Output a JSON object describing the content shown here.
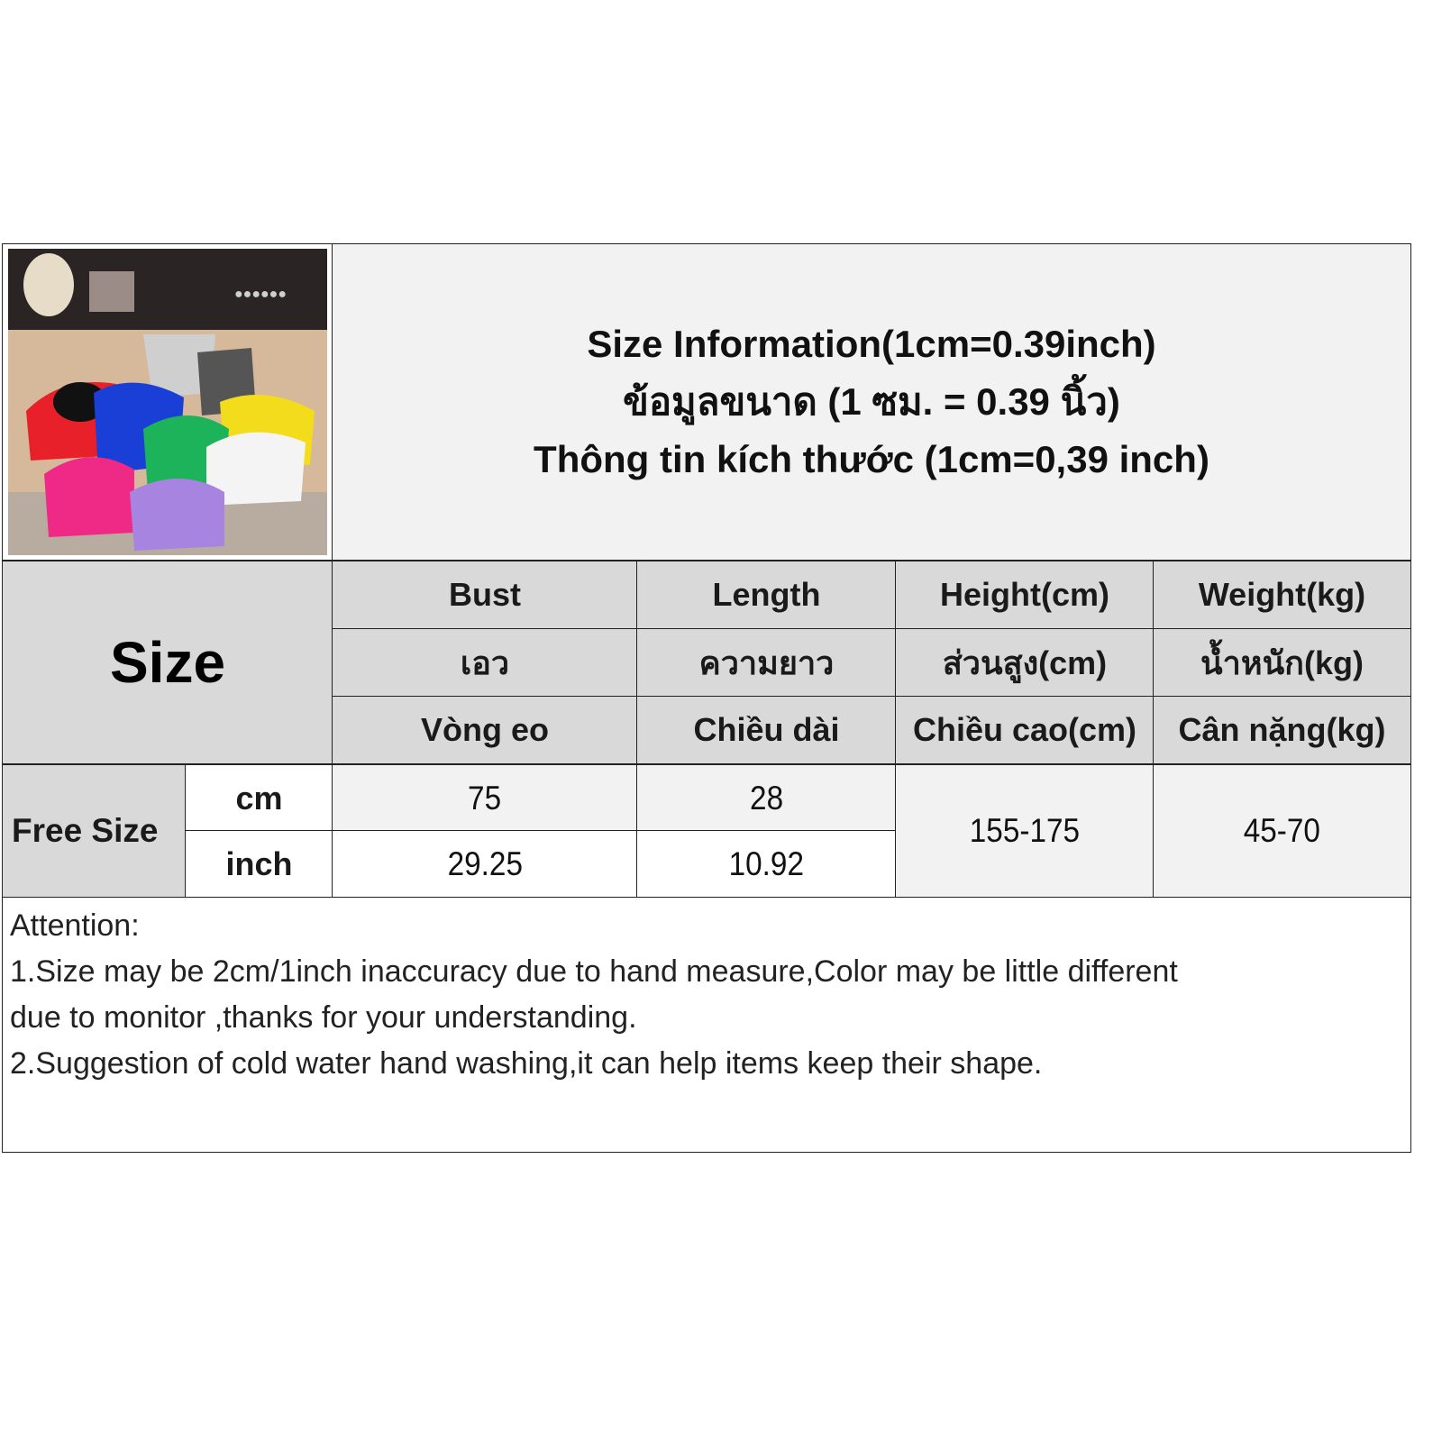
{
  "title": {
    "line_en": "Size Information(1cm=0.39inch)",
    "line_th": "ข้อมูลขนาด (1 ซม. = 0.39 นิ้ว)",
    "line_vi": "Thông tin kích thước (1cm=0,39 inch)"
  },
  "product_photo": {
    "description_icon": "product-photo",
    "colors": [
      "#e8202a",
      "#1a3fd6",
      "#1db35a",
      "#f2dc1c",
      "#f4f4f4",
      "#ef2a86",
      "#a784e0",
      "#555555",
      "#cfcfcf"
    ]
  },
  "table": {
    "size_header": "Size",
    "columns": [
      {
        "en": "Bust",
        "th": "เอว",
        "vi": "Vòng eo"
      },
      {
        "en": "Length",
        "th": "ความยาว",
        "vi": "Chiều dài"
      },
      {
        "en": "Height(cm)",
        "th": "ส่วนสูง(cm)",
        "vi": "Chiều cao(cm)"
      },
      {
        "en": "Weight(kg)",
        "th": "น้ำหนัก(kg)",
        "vi": "Cân nặng(kg)"
      }
    ],
    "row_label": "Free Size",
    "units": [
      "cm",
      "inch"
    ],
    "bust": [
      "75",
      "29.25"
    ],
    "length": [
      "28",
      "10.92"
    ],
    "height": "155-175",
    "weight": "45-70"
  },
  "attention": {
    "heading": "Attention:",
    "lines": [
      "1.Size may be 2cm/1inch inaccuracy due to hand measure,Color may be little different\ndue to monitor ,thanks for your understanding.",
      "2.Suggestion of cold water hand washing,it can help items keep their shape."
    ]
  }
}
